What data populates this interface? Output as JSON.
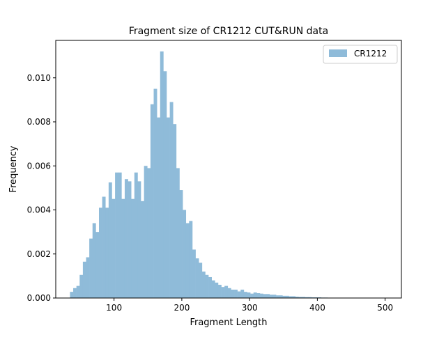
{
  "chart_data": {
    "type": "bar",
    "title": "Fragment size of CR1212 CUT&RUN data",
    "xlabel": "Fragment Length",
    "ylabel": "Frequency",
    "xlim": [
      14,
      524
    ],
    "ylim": [
      0,
      0.0117
    ],
    "xticks": [
      100,
      200,
      300,
      400,
      500
    ],
    "xtick_labels": [
      "100",
      "200",
      "300",
      "400",
      "500"
    ],
    "yticks": [
      0,
      0.002,
      0.004,
      0.006,
      0.008,
      0.01
    ],
    "ytick_labels": [
      "0.000",
      "0.002",
      "0.004",
      "0.006",
      "0.008",
      "0.010"
    ],
    "grid": false,
    "legend": {
      "location": "upper right"
    },
    "bin_start": 35,
    "bin_width": 4.75,
    "series": [
      {
        "name": "CR1212",
        "color": "#8fbbd9",
        "values": [
          0.00028,
          0.00045,
          0.00055,
          0.00105,
          0.00165,
          0.00185,
          0.0027,
          0.0034,
          0.003,
          0.0041,
          0.0046,
          0.0041,
          0.00525,
          0.0045,
          0.0057,
          0.0057,
          0.0045,
          0.0054,
          0.0053,
          0.0045,
          0.0057,
          0.0053,
          0.0044,
          0.006,
          0.0059,
          0.0088,
          0.0095,
          0.0082,
          0.0112,
          0.0103,
          0.0082,
          0.0089,
          0.0079,
          0.0059,
          0.0049,
          0.004,
          0.0034,
          0.0035,
          0.0022,
          0.0018,
          0.0016,
          0.0012,
          0.00105,
          0.00095,
          0.0008,
          0.0007,
          0.0006,
          0.0005,
          0.00055,
          0.00045,
          0.00038,
          0.00038,
          0.0003,
          0.00038,
          0.00028,
          0.00025,
          0.0002,
          0.00025,
          0.00022,
          0.0002,
          0.00018,
          0.00018,
          0.00015,
          0.00015,
          0.00012,
          0.00012,
          0.0001,
          0.0001,
          8e-05,
          8e-05,
          6e-05,
          5e-05,
          5e-05,
          4e-05,
          4e-05,
          3e-05,
          3e-05,
          3e-05,
          2e-05,
          2e-05
        ]
      }
    ]
  }
}
